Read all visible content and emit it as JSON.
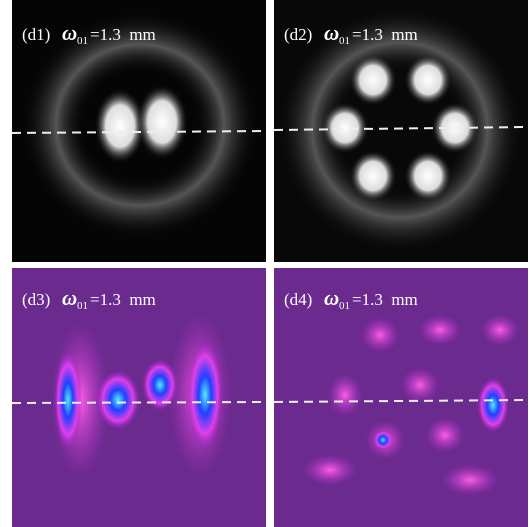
{
  "panels": [
    {
      "label": "(d1)",
      "symbol": "ω",
      "subscript": "01",
      "value": "=1.3  mm"
    },
    {
      "label": "(d2)",
      "symbol": "ω",
      "subscript": "01",
      "value": "=1.3  mm"
    },
    {
      "label": "(d3)",
      "symbol": "ω",
      "subscript": "01",
      "value": "=1.3  mm"
    },
    {
      "label": "(d4)",
      "symbol": "ω",
      "subscript": "01",
      "value": "=1.3  mm"
    }
  ]
}
